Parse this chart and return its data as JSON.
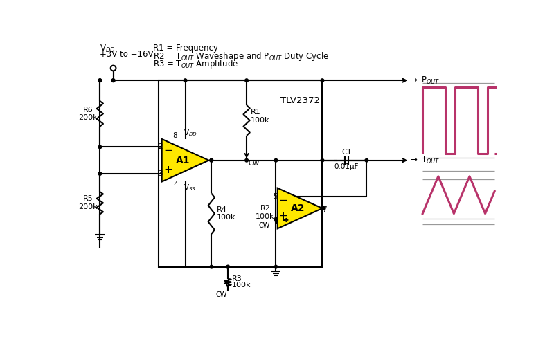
{
  "background_color": "#ffffff",
  "line_color": "#000000",
  "wire_lw": 1.5,
  "component_lw": 1.5,
  "amp_fill": "#FFE800",
  "amp_stroke": "#000000",
  "waveform_color": "#B8336A",
  "text_color": "#000000",
  "header_line1": "R1 = Frequency",
  "header_line2": "R2 = T$_{OUT}$ Waveshape and P$_{OUT}$ Duty Cycle",
  "header_line3": "R3 = T$_{OUT}$ Amplitude",
  "vdd_label1": "V$_{DD}$",
  "vdd_label2": "+3V to +16V",
  "ic_label": "TLV2372",
  "pout_label": "$\\rightarrow$ P$_{OUT}$",
  "tout_label": "$\\rightarrow$ T$_{OUT}$",
  "r1_label": "R1\n100k",
  "r2_label": "R2\n100k",
  "r3_label": "R3",
  "r3_val": "100k",
  "r4_label": "R4\n100k",
  "r5_label": "R5\n200k",
  "r6_label": "R6\n200k",
  "c1_label": "C1",
  "c1_val": "0.01μF",
  "vdd_pin": "V$_{DD}$",
  "vss_pin": "V$_{SS}$",
  "cw_label": "CW"
}
